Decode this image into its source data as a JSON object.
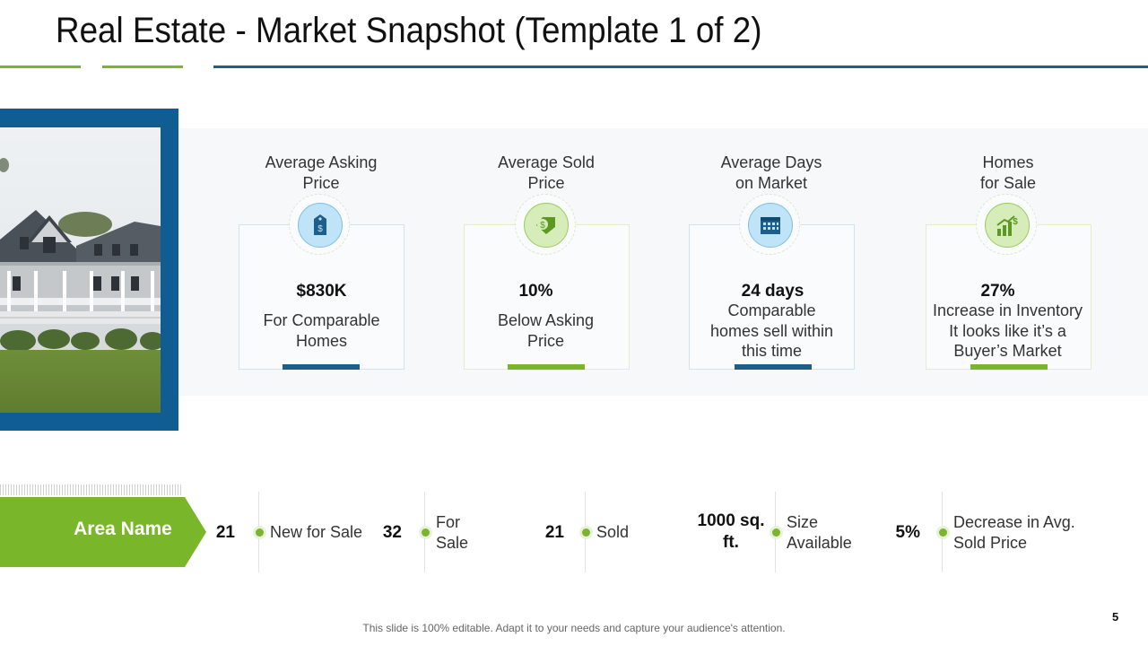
{
  "slide": {
    "title": "Real Estate - Market Snapshot (Template 1 of 2)",
    "footer_note": "This slide is 100% editable. Adapt it to your needs and capture your audience's attention.",
    "page_number": "5"
  },
  "colors": {
    "accent_green": "#7ab62a",
    "accent_blue": "#1d5f8c",
    "frame_blue": "#0f5d93"
  },
  "cards": [
    {
      "heading": "Average Asking\nPrice",
      "icon": "price-tag-dollar-icon",
      "value": "$830K",
      "description": "For Comparable\nHomes",
      "theme": "blue"
    },
    {
      "heading": "Average Sold\nPrice",
      "icon": "dollar-tag-icon",
      "value": "10%",
      "description": "Below Asking\nPrice",
      "theme": "green"
    },
    {
      "heading": "Average Days\non Market",
      "icon": "calendar-icon",
      "value": "24 days",
      "description": "Comparable\nhomes sell within\nthis time",
      "theme": "blue"
    },
    {
      "heading": "Homes\nfor Sale",
      "icon": "growth-chart-icon",
      "value": "27%",
      "description": "Increase in Inventory\nIt looks like it’s a\nBuyer’s Market",
      "theme": "green"
    }
  ],
  "area": {
    "label": "Area Name",
    "stats": [
      {
        "value": "21",
        "label": "New for Sale"
      },
      {
        "value": "32",
        "label": "For\nSale"
      },
      {
        "value": "21",
        "label": "Sold"
      },
      {
        "value": "1000 sq.\nft.",
        "label": "Size\nAvailable"
      },
      {
        "value": "5%",
        "label": "Decrease in Avg.\nSold Price"
      }
    ]
  }
}
